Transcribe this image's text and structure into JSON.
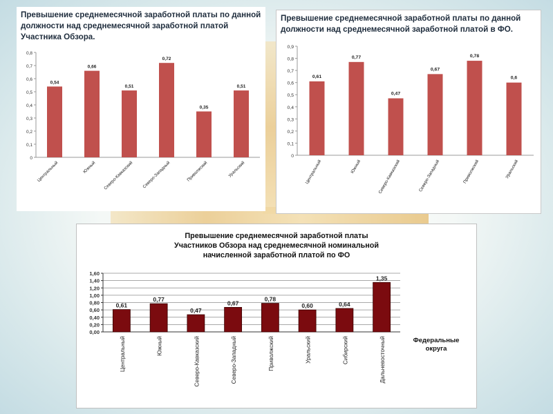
{
  "chart_data": [
    {
      "type": "bar",
      "title": "Превышение среднемесячной заработной платы по данной должности над среднемесячной заработной платой Участника Обзора.",
      "categories": [
        "Центральный",
        "Южный",
        "Северо-Кавказский",
        "Северо-Западный",
        "Приволжский",
        "Уральский"
      ],
      "values": [
        0.54,
        0.66,
        0.51,
        0.72,
        0.35,
        0.51
      ],
      "value_labels": [
        "0,54",
        "0,66",
        "0,51",
        "0,72",
        "0,35",
        "0,51"
      ],
      "ylim": [
        0,
        0.8
      ],
      "yticks": [
        "0",
        "0,1",
        "0,2",
        "0,3",
        "0,4",
        "0,5",
        "0,6",
        "0,7",
        "0,8"
      ],
      "bar_color": "#c0504d",
      "grid": false
    },
    {
      "type": "bar",
      "title": "Превышение среднемесячной заработной платы по данной должности над среднемесячной заработной платой в ФО.",
      "categories": [
        "Центральный",
        "Южный",
        "Северо-Кавказский",
        "Северо-Западный",
        "Приволжский",
        "Уральский"
      ],
      "values": [
        0.61,
        0.77,
        0.47,
        0.67,
        0.78,
        0.6
      ],
      "value_labels": [
        "0,61",
        "0,77",
        "0,47",
        "0,67",
        "0,78",
        "0,6"
      ],
      "ylim": [
        0,
        0.9
      ],
      "yticks": [
        "0",
        "0,1",
        "0,2",
        "0,3",
        "0,4",
        "0,5",
        "0,6",
        "0,7",
        "0,8",
        "0,9"
      ],
      "bar_color": "#c0504d",
      "grid": false
    },
    {
      "type": "bar",
      "title_lines": [
        "Превышение среднемесячной заработной платы",
        "Участников Обзора над среднемесячной номинальной",
        "начисленной заработной платой по ФО"
      ],
      "categories": [
        "Центральный",
        "Южный",
        "Северо-Кавказский",
        "Северо-Западный",
        "Приволжский",
        "Уральский",
        "Сибирский",
        "Дальневосточный"
      ],
      "values": [
        0.61,
        0.77,
        0.47,
        0.67,
        0.78,
        0.6,
        0.64,
        1.35
      ],
      "value_labels": [
        "0,61",
        "0,77",
        "0,47",
        "0,67",
        "0,78",
        "0,60",
        "0,64",
        "1,35"
      ],
      "ylim": [
        0,
        1.6
      ],
      "yticks": [
        "0,00",
        "0,20",
        "0,40",
        "0,60",
        "0,80",
        "1,00",
        "1,20",
        "1,40",
        "1,60"
      ],
      "xlabel_lines": [
        "Федеральные",
        "округа"
      ],
      "bar_color": "#7b0b0f",
      "grid": true
    }
  ]
}
